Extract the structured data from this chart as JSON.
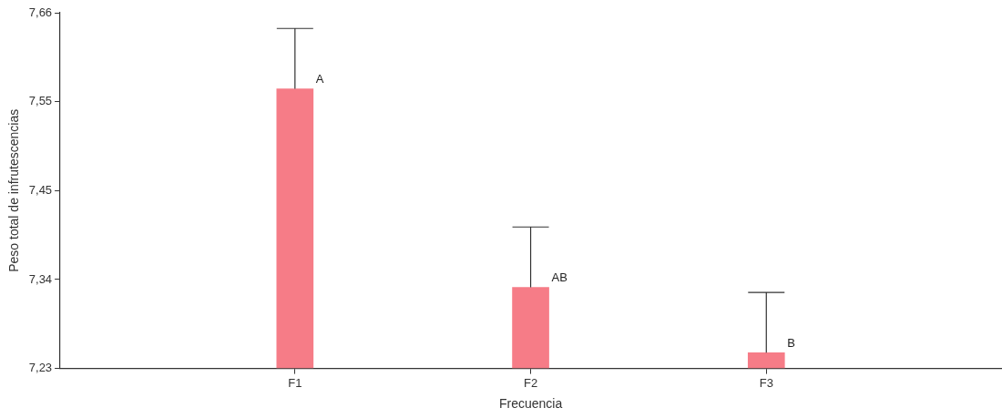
{
  "chart_data": {
    "type": "bar",
    "xlabel": "Frecuencia",
    "ylabel": "Peso total de infrutescencias",
    "categories": [
      "F1",
      "F2",
      "F3"
    ],
    "values": [
      7.568,
      7.328,
      7.249
    ],
    "errors": [
      [
        7.568,
        7.641
      ],
      [
        7.328,
        7.401
      ],
      [
        7.249,
        7.322
      ]
    ],
    "color": "#f67c87",
    "ylim": [
      7.23,
      7.66
    ],
    "yticks": [
      {
        "value": 7.23,
        "label": "7,23"
      },
      {
        "value": 7.3375,
        "label": "7,34"
      },
      {
        "value": 7.445,
        "label": "7,45"
      },
      {
        "value": 7.5525,
        "label": "7,55"
      },
      {
        "value": 7.66,
        "label": "7,66"
      }
    ],
    "annotations": [
      "A",
      "AB",
      "B"
    ],
    "grid": false,
    "legend": false
  }
}
